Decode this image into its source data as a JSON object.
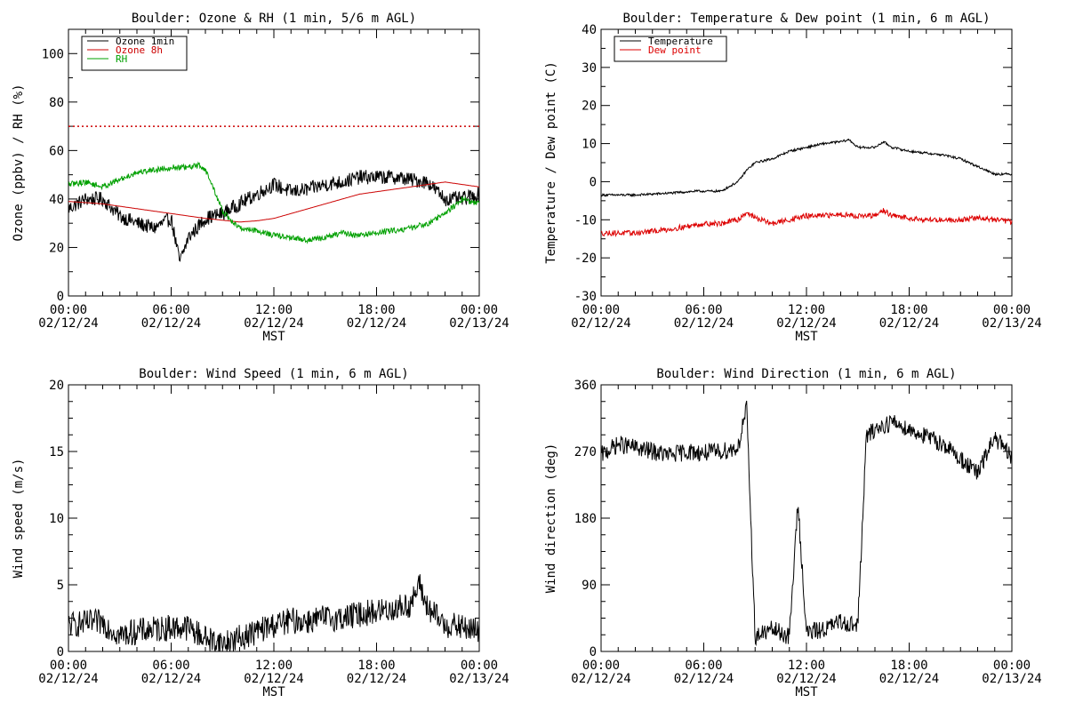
{
  "chart_data": [
    {
      "type": "line",
      "title": "Boulder: Ozone & RH (1 min, 5/6 m AGL)",
      "xlabel": "MST",
      "ylabel": "Ozone (ppbv) / RH (%)",
      "x_ticks": [
        {
          "time": "00:00",
          "date": "02/12/24"
        },
        {
          "time": "06:00",
          "date": "02/12/24"
        },
        {
          "time": "12:00",
          "date": "02/12/24"
        },
        {
          "time": "18:00",
          "date": "02/12/24"
        },
        {
          "time": "00:00",
          "date": "02/13/24"
        }
      ],
      "xlim": [
        "2024-02-12 00:00",
        "2024-02-13 00:00"
      ],
      "ylim": [
        0,
        110
      ],
      "y_ticks": [
        0,
        20,
        40,
        60,
        80,
        100
      ],
      "legend_position": "top-left",
      "reference_line": {
        "y": 70,
        "color": "#cc0000",
        "style": "dotted"
      },
      "series": [
        {
          "name": "Ozone 1min",
          "color": "#000000",
          "noise": 3,
          "x": [
            "00:00",
            "01:00",
            "02:00",
            "03:00",
            "04:00",
            "05:00",
            "06:00",
            "06:30",
            "07:00",
            "08:00",
            "09:00",
            "10:00",
            "11:00",
            "12:00",
            "13:00",
            "14:00",
            "15:00",
            "16:00",
            "17:00",
            "18:00",
            "19:00",
            "20:00",
            "21:00",
            "22:00",
            "23:00",
            "24:00"
          ],
          "y": [
            36,
            40,
            40,
            33,
            30,
            28,
            32,
            14,
            24,
            32,
            34,
            38,
            42,
            46,
            43,
            44,
            46,
            47,
            49,
            49,
            49,
            48,
            47,
            40,
            40,
            42
          ]
        },
        {
          "name": "Ozone 8h",
          "color": "#cc0000",
          "noise": 0,
          "x": [
            "00:00",
            "02:00",
            "04:00",
            "06:00",
            "08:00",
            "10:00",
            "11:00",
            "12:00",
            "13:00",
            "14:00",
            "15:00",
            "16:00",
            "17:00",
            "18:00",
            "19:00",
            "20:00",
            "21:00",
            "22:00",
            "23:00",
            "24:00"
          ],
          "y": [
            39,
            38,
            36,
            34,
            32,
            30.5,
            31,
            32,
            34,
            36,
            38,
            40,
            42,
            43,
            44,
            45,
            46,
            47,
            46,
            45
          ]
        },
        {
          "name": "RH",
          "color": "#00a000",
          "noise": 1.2,
          "x": [
            "00:00",
            "01:00",
            "02:00",
            "03:00",
            "04:00",
            "05:00",
            "06:00",
            "07:00",
            "07:40",
            "08:00",
            "08:30",
            "09:00",
            "09:30",
            "10:00",
            "11:00",
            "12:00",
            "13:00",
            "14:00",
            "15:00",
            "16:00",
            "17:00",
            "18:00",
            "19:00",
            "20:00",
            "21:00",
            "22:00",
            "23:00",
            "24:00"
          ],
          "y": [
            46,
            47,
            45,
            48,
            51,
            52,
            53,
            53,
            54,
            52,
            44,
            35,
            31,
            28,
            27,
            25,
            24,
            23,
            24,
            26,
            25,
            26,
            27,
            28,
            30,
            34,
            40,
            38
          ]
        }
      ]
    },
    {
      "type": "line",
      "title": "Boulder: Temperature & Dew point (1 min, 6 m AGL)",
      "xlabel": "MST",
      "ylabel": "Temperature / Dew point (C)",
      "x_ticks": [
        {
          "time": "00:00",
          "date": "02/12/24"
        },
        {
          "time": "06:00",
          "date": "02/12/24"
        },
        {
          "time": "12:00",
          "date": "02/12/24"
        },
        {
          "time": "18:00",
          "date": "02/12/24"
        },
        {
          "time": "00:00",
          "date": "02/13/24"
        }
      ],
      "xlim": [
        "2024-02-12 00:00",
        "2024-02-13 00:00"
      ],
      "ylim": [
        -30,
        40
      ],
      "y_ticks": [
        -30,
        -20,
        -10,
        0,
        10,
        20,
        30,
        40
      ],
      "legend_position": "top-left",
      "series": [
        {
          "name": "Temperature",
          "color": "#000000",
          "noise": 0.3,
          "x": [
            "00:00",
            "02:00",
            "04:00",
            "05:30",
            "06:00",
            "07:00",
            "08:00",
            "08:30",
            "09:00",
            "10:00",
            "11:00",
            "12:00",
            "13:00",
            "14:00",
            "14:30",
            "15:00",
            "16:00",
            "16:30",
            "17:00",
            "18:00",
            "19:00",
            "20:00",
            "21:00",
            "22:00",
            "23:00",
            "24:00"
          ],
          "y": [
            -3.5,
            -3.5,
            -3,
            -2.5,
            -2.5,
            -2.5,
            0,
            3,
            5,
            6,
            8,
            9,
            10,
            10.5,
            11,
            9,
            9,
            10.5,
            9,
            8,
            7.5,
            7,
            6,
            4,
            2,
            2
          ]
        },
        {
          "name": "Dew point",
          "color": "#dd0000",
          "noise": 0.7,
          "x": [
            "00:00",
            "01:00",
            "02:00",
            "04:00",
            "06:00",
            "07:00",
            "08:00",
            "08:30",
            "09:00",
            "10:00",
            "11:00",
            "12:00",
            "13:00",
            "14:00",
            "15:00",
            "16:00",
            "16:30",
            "17:00",
            "18:00",
            "19:00",
            "20:00",
            "21:00",
            "22:00",
            "23:00",
            "24:00"
          ],
          "y": [
            -13.5,
            -13.5,
            -13.5,
            -12.5,
            -11,
            -11,
            -10,
            -8,
            -9.5,
            -11,
            -10,
            -9,
            -9,
            -8.5,
            -9,
            -9,
            -7.5,
            -9,
            -9.5,
            -10,
            -10,
            -10,
            -9.5,
            -10,
            -10.5
          ]
        }
      ]
    },
    {
      "type": "line",
      "title": "Boulder: Wind Speed (1 min, 6 m AGL)",
      "xlabel": "MST",
      "ylabel": "Wind speed (m/s)",
      "x_ticks": [
        {
          "time": "00:00",
          "date": "02/12/24"
        },
        {
          "time": "06:00",
          "date": "02/12/24"
        },
        {
          "time": "12:00",
          "date": "02/12/24"
        },
        {
          "time": "18:00",
          "date": "02/12/24"
        },
        {
          "time": "00:00",
          "date": "02/13/24"
        }
      ],
      "xlim": [
        "2024-02-12 00:00",
        "2024-02-13 00:00"
      ],
      "ylim": [
        0,
        20
      ],
      "y_ticks": [
        0,
        5,
        10,
        15,
        20
      ],
      "series": [
        {
          "color": "#000000",
          "noise": 1.0,
          "x": [
            "00:00",
            "02:00",
            "03:00",
            "04:00",
            "06:00",
            "07:00",
            "08:00",
            "09:00",
            "10:00",
            "11:00",
            "12:00",
            "13:00",
            "14:00",
            "15:00",
            "16:00",
            "17:00",
            "18:00",
            "19:00",
            "20:00",
            "20:30",
            "21:00",
            "22:00",
            "23:00",
            "24:00"
          ],
          "y": [
            2,
            2.2,
            1.2,
            1.5,
            1.8,
            1.8,
            1,
            0.6,
            1,
            1.5,
            2,
            2.3,
            2.3,
            2.5,
            2.5,
            2.8,
            3,
            3.2,
            3.5,
            5,
            3.2,
            2,
            1.8,
            1.5
          ]
        }
      ]
    },
    {
      "type": "line",
      "title": "Boulder: Wind Direction (1 min, 6 m AGL)",
      "xlabel": "MST",
      "ylabel": "Wind direction (deg)",
      "x_ticks": [
        {
          "time": "00:00",
          "date": "02/12/24"
        },
        {
          "time": "06:00",
          "date": "02/12/24"
        },
        {
          "time": "12:00",
          "date": "02/12/24"
        },
        {
          "time": "18:00",
          "date": "02/12/24"
        },
        {
          "time": "00:00",
          "date": "02/13/24"
        }
      ],
      "xlim": [
        "2024-02-12 00:00",
        "2024-02-13 00:00"
      ],
      "ylim": [
        0,
        360
      ],
      "y_ticks": [
        0,
        90,
        180,
        270,
        360
      ],
      "series": [
        {
          "color": "#000000",
          "noise": 12,
          "x": [
            "00:00",
            "01:00",
            "02:00",
            "03:00",
            "04:00",
            "05:00",
            "06:00",
            "07:00",
            "08:00",
            "08:30",
            "09:00",
            "10:00",
            "11:00",
            "11:30",
            "12:00",
            "13:00",
            "14:00",
            "15:00",
            "15:30",
            "16:00",
            "17:00",
            "18:00",
            "19:00",
            "20:00",
            "21:00",
            "22:00",
            "23:00",
            "24:00"
          ],
          "y": [
            265,
            280,
            275,
            270,
            265,
            270,
            268,
            270,
            275,
            330,
            20,
            30,
            20,
            200,
            25,
            30,
            40,
            35,
            290,
            300,
            310,
            300,
            290,
            280,
            260,
            240,
            290,
            260
          ]
        }
      ]
    }
  ]
}
